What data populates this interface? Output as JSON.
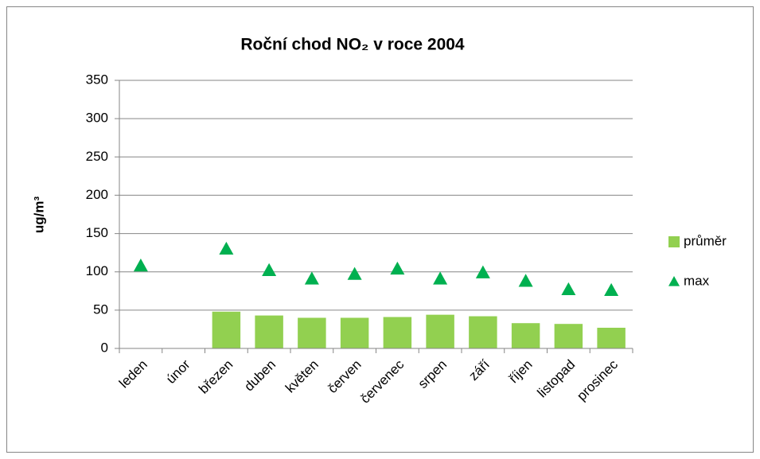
{
  "chart_data": {
    "type": "bar",
    "title": "Roční chod NO₂ v roce 2004",
    "y_label": "ug/m³",
    "categories": [
      "leden",
      "únor",
      "březen",
      "duben",
      "květen",
      "červen",
      "červenec",
      "srpen",
      "září",
      "říjen",
      "listopad",
      "prosinec"
    ],
    "series": [
      {
        "name": "průměr",
        "color": "#92d050",
        "marker": "bar",
        "values": [
          null,
          null,
          48,
          43,
          40,
          40,
          41,
          44,
          42,
          33,
          32,
          27
        ]
      },
      {
        "name": "max",
        "color": "#00b050",
        "marker": "triangle",
        "values": [
          108,
          null,
          130,
          102,
          91,
          97,
          104,
          91,
          99,
          88,
          77,
          76
        ]
      }
    ],
    "ylim": [
      0,
      350
    ],
    "yticks": [
      0,
      50,
      100,
      150,
      200,
      250,
      300,
      350
    ],
    "grid": true,
    "legend": "right"
  }
}
